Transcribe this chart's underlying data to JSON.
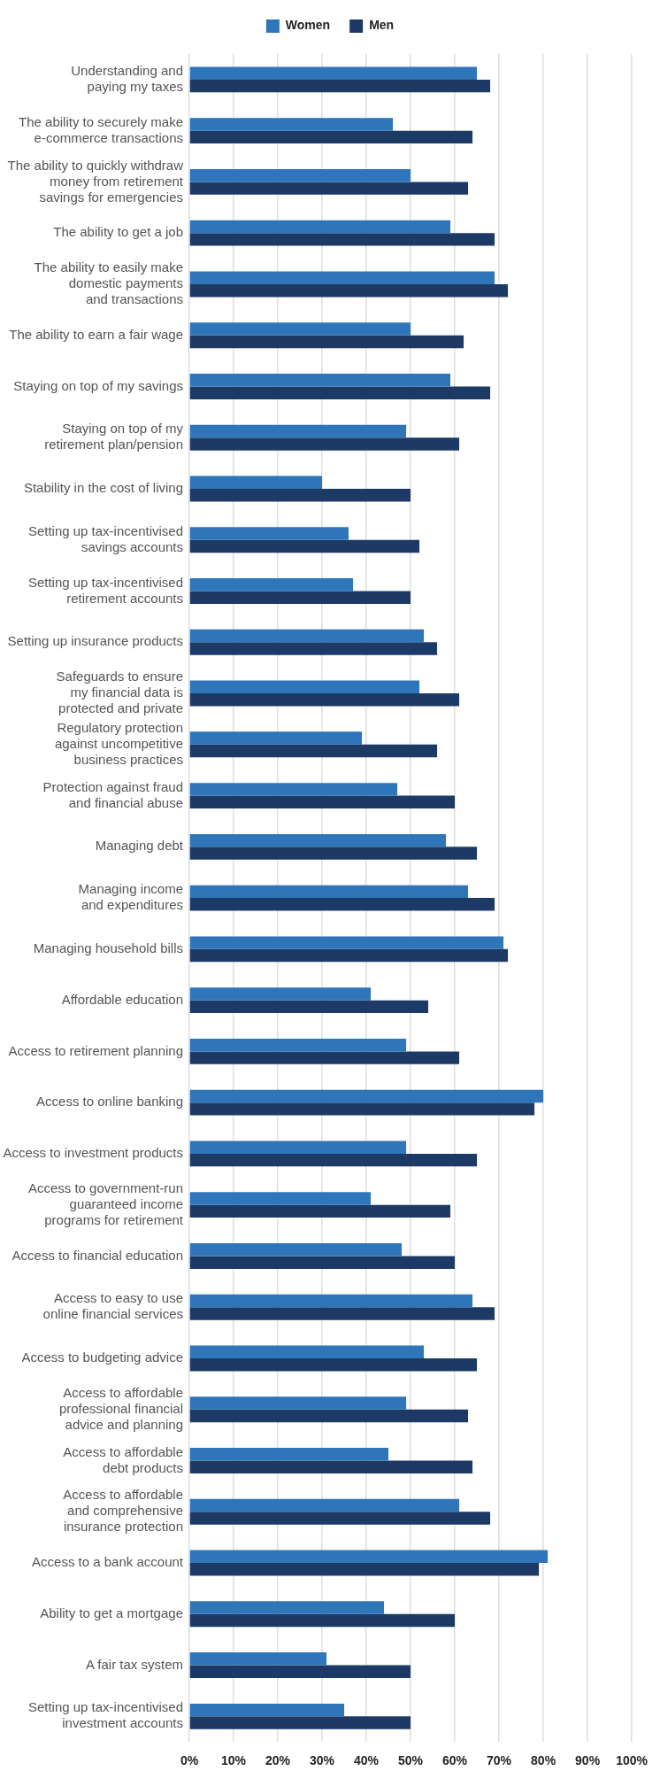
{
  "chart_data": {
    "type": "bar",
    "orientation": "horizontal",
    "legend": "top",
    "grid": "x",
    "categories": [
      "Understanding and\npaying my taxes",
      "The ability to securely make\ne-commerce transactions",
      "The ability to quickly withdraw\nmoney from retirement\nsavings for emergencies",
      "The ability to get a job",
      "The ability to easily make\ndomestic payments\nand transactions",
      "The ability to earn a fair wage",
      "Staying on top of my savings",
      "Staying on top of my\nretirement plan/pension",
      "Stability in the cost of living",
      "Setting up tax-incentivised\nsavings accounts",
      "Setting up tax-incentivised\nretirement accounts",
      "Setting up insurance products",
      "Safeguards to ensure\nmy financial data is\nprotected and private",
      "Regulatory protection\nagainst uncompetitive\nbusiness practices",
      "Protection against fraud\nand financial abuse",
      "Managing debt",
      "Managing income\nand expenditures",
      "Managing household bills",
      "Affordable education",
      "Access to retirement planning",
      "Access to online banking",
      "Access to investment products",
      "Access to government-run\nguaranteed income\nprograms for retirement",
      "Access to financial education",
      "Access to easy to use\nonline financial services",
      "Access to budgeting advice",
      "Access to affordable\nprofessional financial\nadvice and planning",
      "Access to affordable\ndebt products",
      "Access to affordable\nand comprehensive\ninsurance protection",
      "Access to a bank account",
      "Ability to get a mortgage",
      "A fair tax system",
      "Setting up tax-incentivised\ninvestment accounts"
    ],
    "series": [
      {
        "name": "Women",
        "color": "#2e75b9",
        "values": [
          65,
          46,
          50,
          59,
          69,
          50,
          59,
          49,
          30,
          36,
          37,
          53,
          52,
          39,
          47,
          58,
          63,
          71,
          41,
          49,
          80,
          49,
          41,
          48,
          64,
          53,
          49,
          45,
          61,
          81,
          44,
          31,
          35
        ]
      },
      {
        "name": "Men",
        "color": "#1c3a65",
        "values": [
          68,
          64,
          63,
          69,
          72,
          62,
          68,
          61,
          50,
          52,
          50,
          56,
          61,
          56,
          60,
          65,
          69,
          72,
          54,
          61,
          78,
          65,
          59,
          60,
          69,
          65,
          63,
          64,
          68,
          79,
          60,
          50,
          50
        ]
      }
    ],
    "xlim": [
      0,
      100
    ],
    "xticks": [
      {
        "value": 0,
        "label": "0%"
      },
      {
        "value": 10,
        "label": "10%"
      },
      {
        "value": 20,
        "label": "20%"
      },
      {
        "value": 30,
        "label": "30%"
      },
      {
        "value": 40,
        "label": "40%"
      },
      {
        "value": 50,
        "label": "50%"
      },
      {
        "value": 60,
        "label": "60%"
      },
      {
        "value": 70,
        "label": "70%"
      },
      {
        "value": 80,
        "label": "80%"
      },
      {
        "value": 90,
        "label": "90%"
      },
      {
        "value": 100,
        "label": "100%"
      }
    ]
  }
}
